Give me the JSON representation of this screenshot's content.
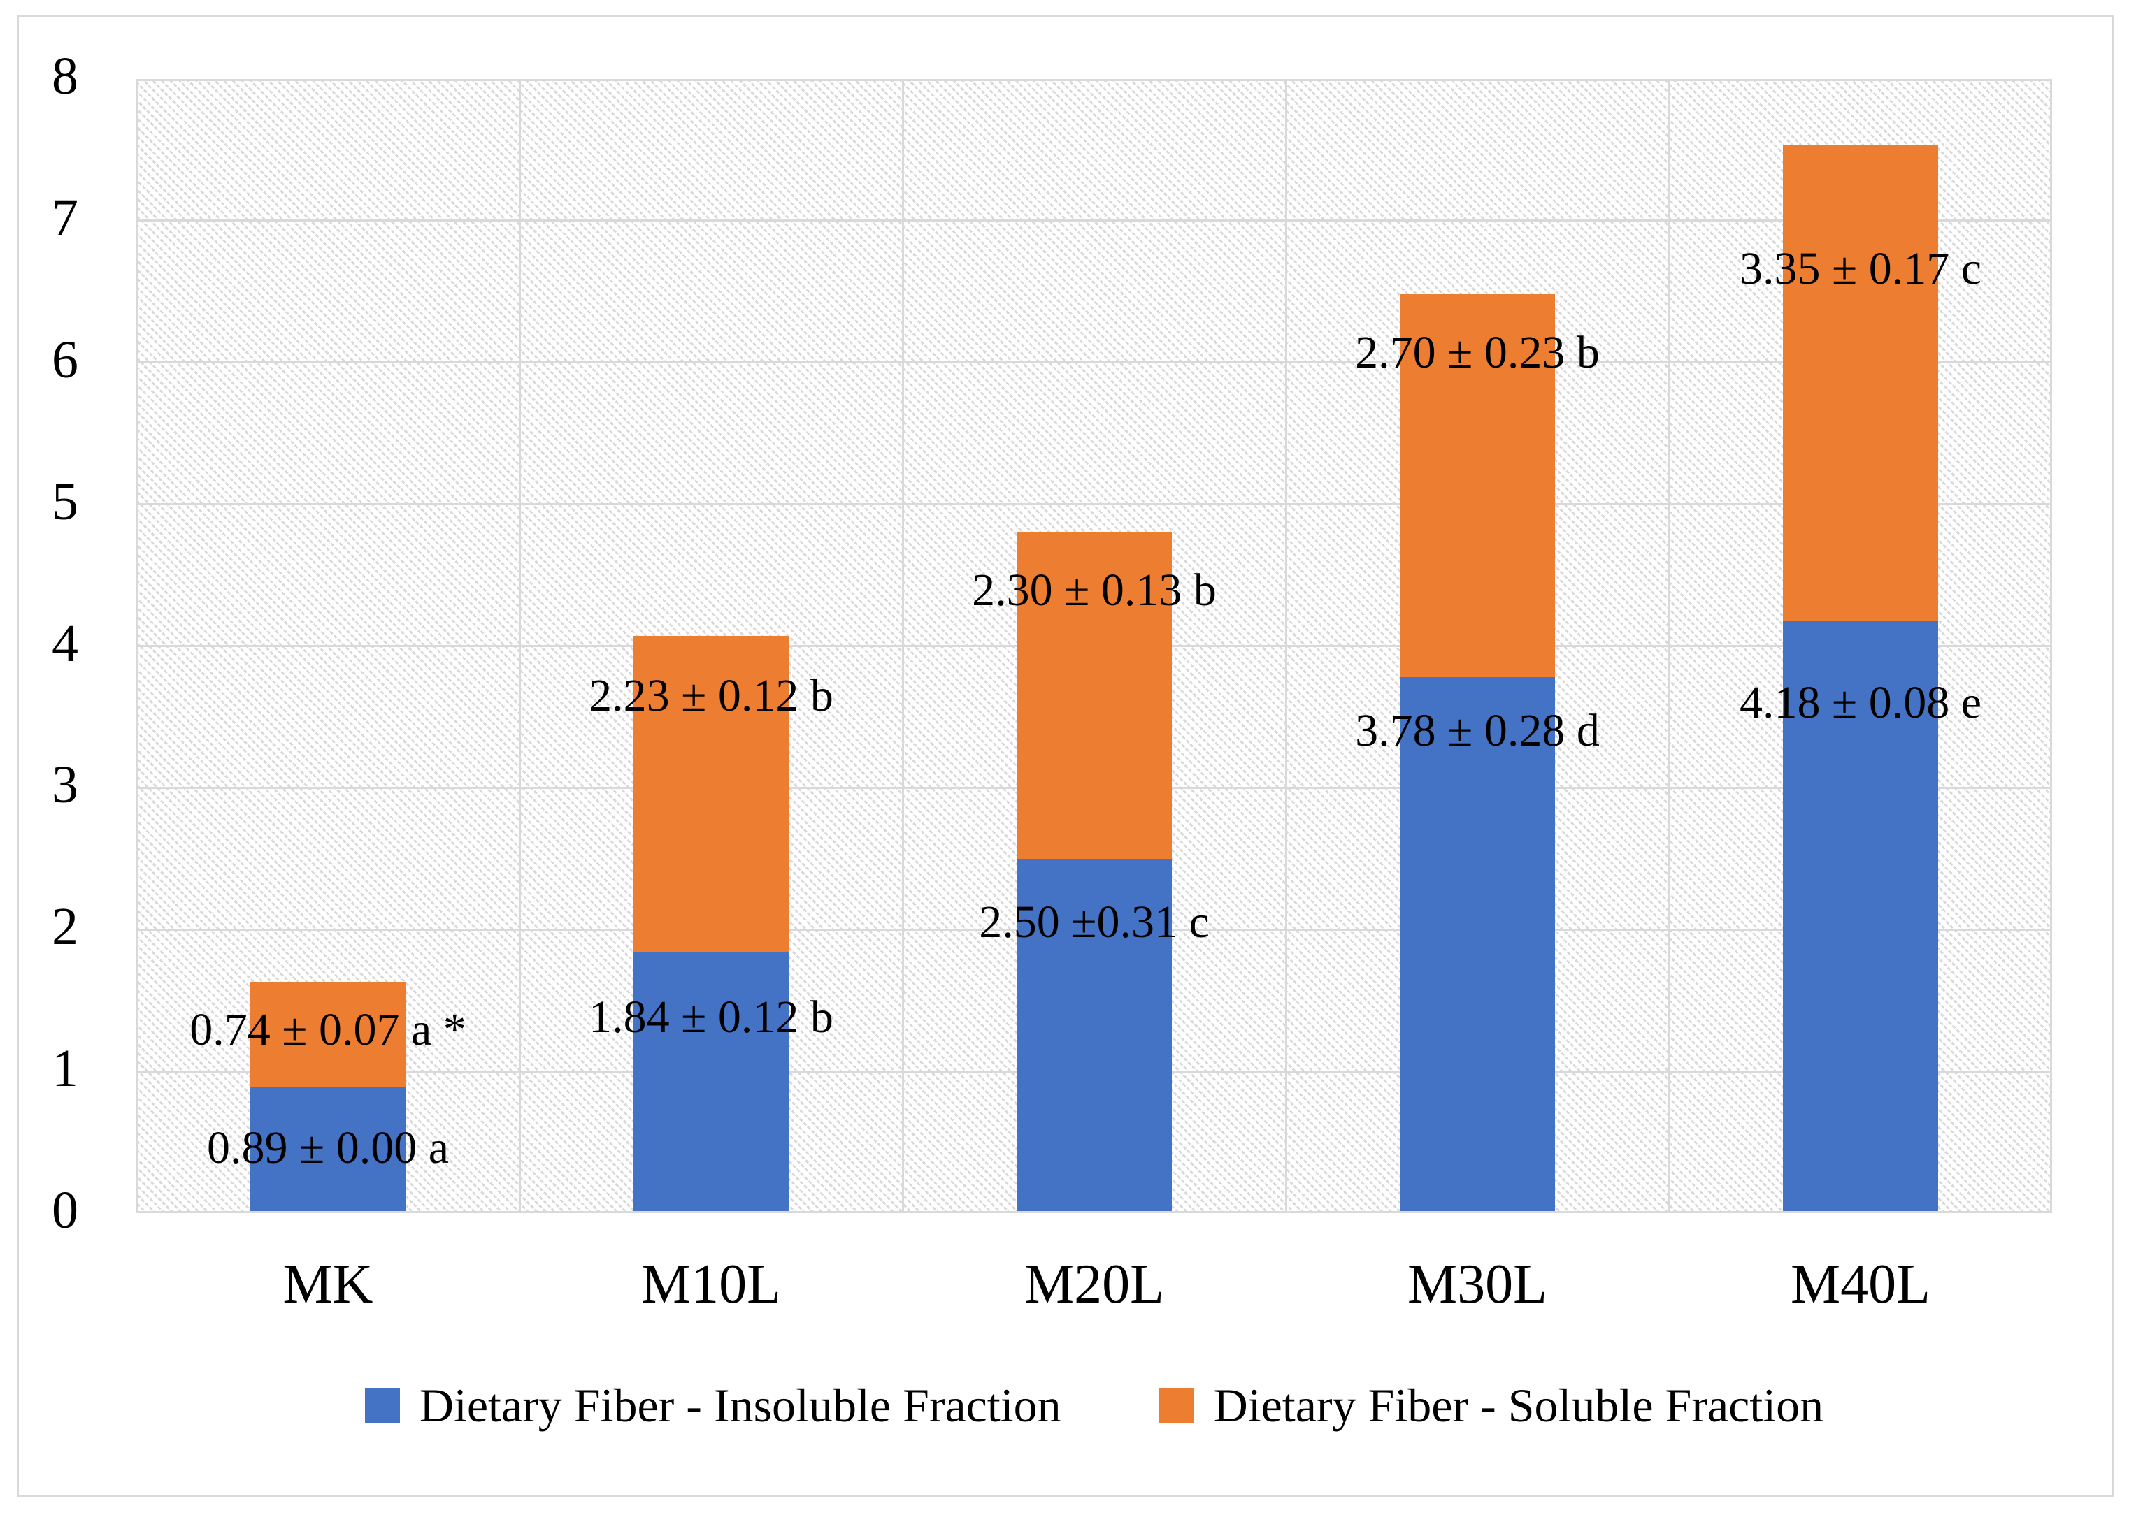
{
  "chart_data": {
    "type": "bar",
    "stacked": true,
    "title": "",
    "xlabel": "",
    "ylabel": "",
    "categories": [
      "MK",
      "M10L",
      "M20L",
      "M30L",
      "M40L"
    ],
    "series": [
      {
        "name": "Dietary Fiber - Insoluble Fraction",
        "color": "#4472C4",
        "values": [
          0.89,
          1.84,
          2.5,
          3.78,
          4.18
        ],
        "data_labels": [
          "0.89 ± 0.00 a",
          "1.84 ± 0.12 b",
          "2.50 ±0.31 c",
          "3.78 ± 0.28 d",
          "4.18 ± 0.08 e"
        ],
        "label_y_axis_units": [
          0.44,
          1.36,
          2.03,
          3.38,
          3.58
        ]
      },
      {
        "name": "Dietary Fiber - Soluble Fraction",
        "color": "#ED7D31",
        "values": [
          0.74,
          2.23,
          2.3,
          2.7,
          3.35
        ],
        "data_labels": [
          "0.74 ± 0.07 a *",
          "2.23 ± 0.12 b",
          "2.30 ± 0.13 b",
          "2.70 ± 0.23 b",
          "3.35 ± 0.17 c"
        ],
        "label_y_axis_units": [
          1.27,
          3.63,
          4.37,
          6.05,
          6.64
        ]
      }
    ],
    "ylim": [
      0,
      8
    ],
    "yticks": [
      0,
      1,
      2,
      3,
      4,
      5,
      6,
      7,
      8
    ],
    "grid": true,
    "legend_position": "bottom",
    "plot_background": "light-downward-diagonal-hatch",
    "colors": {
      "gridline": "#D9D9D9",
      "border": "#D9D9D9",
      "text": "#000000"
    }
  }
}
